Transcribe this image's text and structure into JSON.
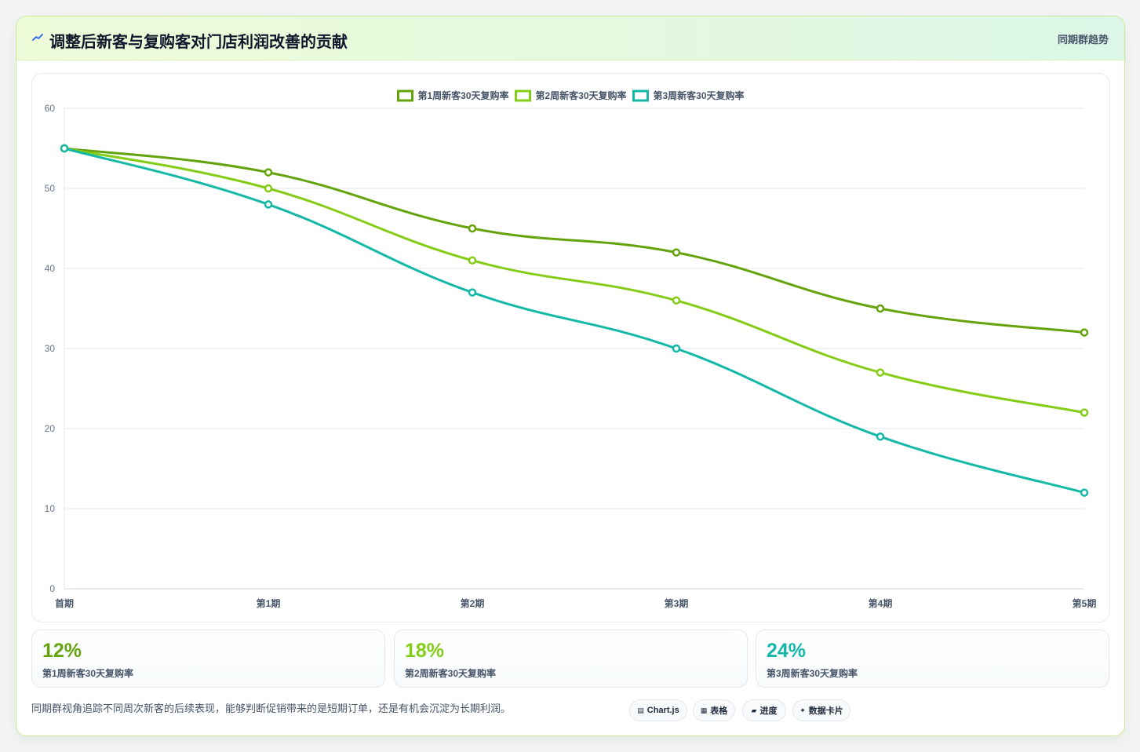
{
  "header": {
    "title": "调整后新客与复购客对门店利润改善的贡献",
    "tag": "同期群趋势"
  },
  "chart_data": {
    "type": "line",
    "categories": [
      "首期",
      "第1期",
      "第2期",
      "第3期",
      "第4期",
      "第5期"
    ],
    "series": [
      {
        "name": "第1周新客30天复购率",
        "values": [
          55,
          52,
          45,
          42,
          35,
          32
        ],
        "color": "#65a30d"
      },
      {
        "name": "第2周新客30天复购率",
        "values": [
          55,
          50,
          41,
          36,
          27,
          22
        ],
        "color": "#84cc16"
      },
      {
        "name": "第3周新客30天复购率",
        "values": [
          55,
          48,
          37,
          30,
          19,
          12
        ],
        "color": "#14b8a6"
      }
    ],
    "ylim": [
      0,
      60
    ],
    "yticks": [
      0,
      10,
      20,
      30,
      40,
      50,
      60
    ],
    "grid": true,
    "legend": "top-center"
  },
  "kpis": [
    {
      "value": "12%",
      "label": "第1周新客30天复购率",
      "color": "#65a30d"
    },
    {
      "value": "18%",
      "label": "第2周新客30天复购率",
      "color": "#84cc16"
    },
    {
      "value": "24%",
      "label": "第3周新客30天复购率",
      "color": "#14b8a6"
    }
  ],
  "footnote": "同期群视角追踪不同周次新客的后续表现，能够判断促销带来的是短期订单，还是有机会沉淀为长期利润。",
  "chips": [
    {
      "icon": "▤",
      "label": "Chart.js"
    },
    {
      "icon": "▦",
      "label": "表格"
    },
    {
      "icon": "▰",
      "label": "进度"
    },
    {
      "icon": "✦",
      "label": "数据卡片"
    }
  ]
}
